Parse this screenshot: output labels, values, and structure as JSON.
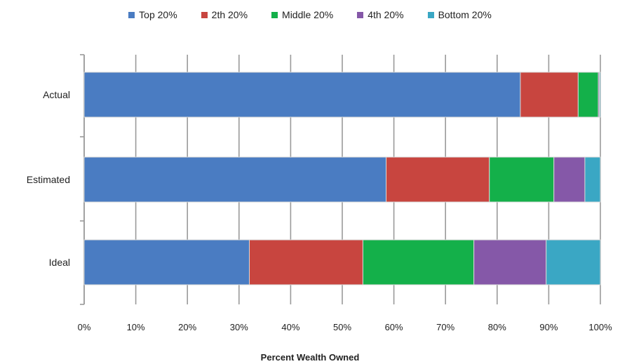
{
  "chart_data": {
    "type": "bar",
    "orientation": "horizontal",
    "stacked": true,
    "categories": [
      "Actual",
      "Estimated",
      "Ideal"
    ],
    "series": [
      {
        "name": "Top 20%",
        "color": "#4a7cc2",
        "values": [
          84.5,
          58.5,
          32
        ]
      },
      {
        "name": "2th 20%",
        "color": "#c8453f",
        "values": [
          11.2,
          20,
          22
        ]
      },
      {
        "name": "Middle 20%",
        "color": "#14b04a",
        "values": [
          3.9,
          12.5,
          21.5
        ]
      },
      {
        "name": "4th 20%",
        "color": "#8558a8",
        "values": [
          0.2,
          6,
          14
        ]
      },
      {
        "name": "Bottom 20%",
        "color": "#3aa7c4",
        "values": [
          0.2,
          3,
          10.5
        ]
      }
    ],
    "xlim": [
      0,
      100
    ],
    "xticks": [
      "0%",
      "10%",
      "20%",
      "30%",
      "40%",
      "50%",
      "60%",
      "70%",
      "80%",
      "90%",
      "100%"
    ],
    "xlabel": "Percent Wealth Owned",
    "ylabel": "",
    "title": "",
    "grid": "vertical",
    "legend_position": "top"
  }
}
